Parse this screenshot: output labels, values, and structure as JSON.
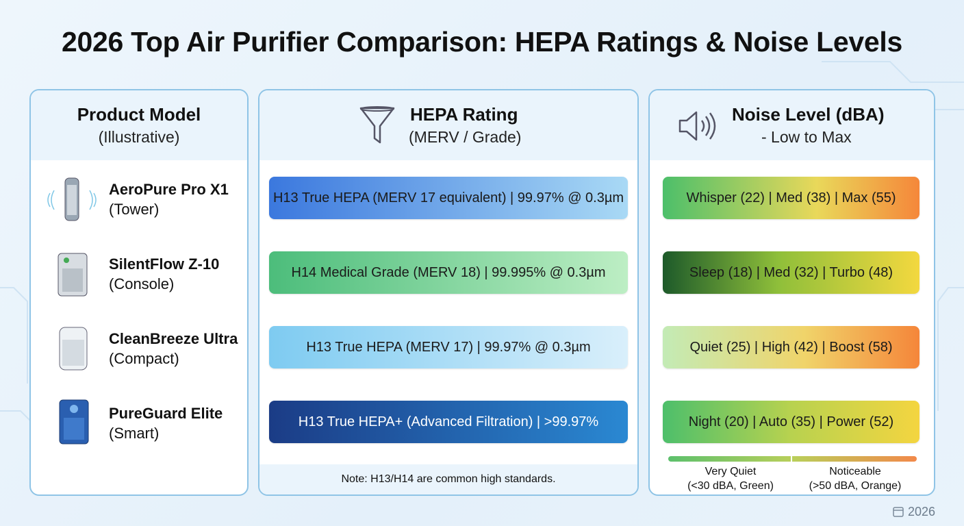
{
  "title": "2026 Top Air Purifier Comparison: HEPA Ratings & Noise Levels",
  "columns": [
    {
      "title": "Product Model",
      "subtitle": "(Illustrative)"
    },
    {
      "title": "HEPA Rating",
      "subtitle": "(MERV / Grade)"
    },
    {
      "title": "Noise Level (dBA)",
      "subtitle": "- Low to Max"
    }
  ],
  "rows": [
    {
      "name": "AeroPure Pro X1",
      "type": "(Tower)",
      "hepa": "H13 True HEPA (MERV 17 equivalent) | 99.97% @ 0.3µm",
      "noise": "Whisper (22) | Med (38) | Max (55)"
    },
    {
      "name": "SilentFlow Z-10",
      "type": "(Console)",
      "hepa": "H14 Medical Grade (MERV 18) | 99.995% @ 0.3µm",
      "noise": "Sleep (18) | Med (32) | Turbo (48)"
    },
    {
      "name": "CleanBreeze Ultra",
      "type": "(Compact)",
      "hepa": "H13 True HEPA (MERV 17) | 99.97% @ 0.3µm",
      "noise": "Quiet (25) | High (42) | Boost (58)"
    },
    {
      "name": "PureGuard Elite",
      "type": "(Smart)",
      "hepa": "H13 True HEPA+ (Advanced Filtration) | >99.97%",
      "noise": "Night (20) | Auto (35) | Power (52)"
    }
  ],
  "note": "Note: H13/H14 are common high standards.",
  "legend": [
    {
      "label": "Very Quiet",
      "detail": "(<30 dBA, Green)"
    },
    {
      "label": "Noticeable",
      "detail": "(>50 dBA, Orange)"
    }
  ],
  "footer": "2026"
}
